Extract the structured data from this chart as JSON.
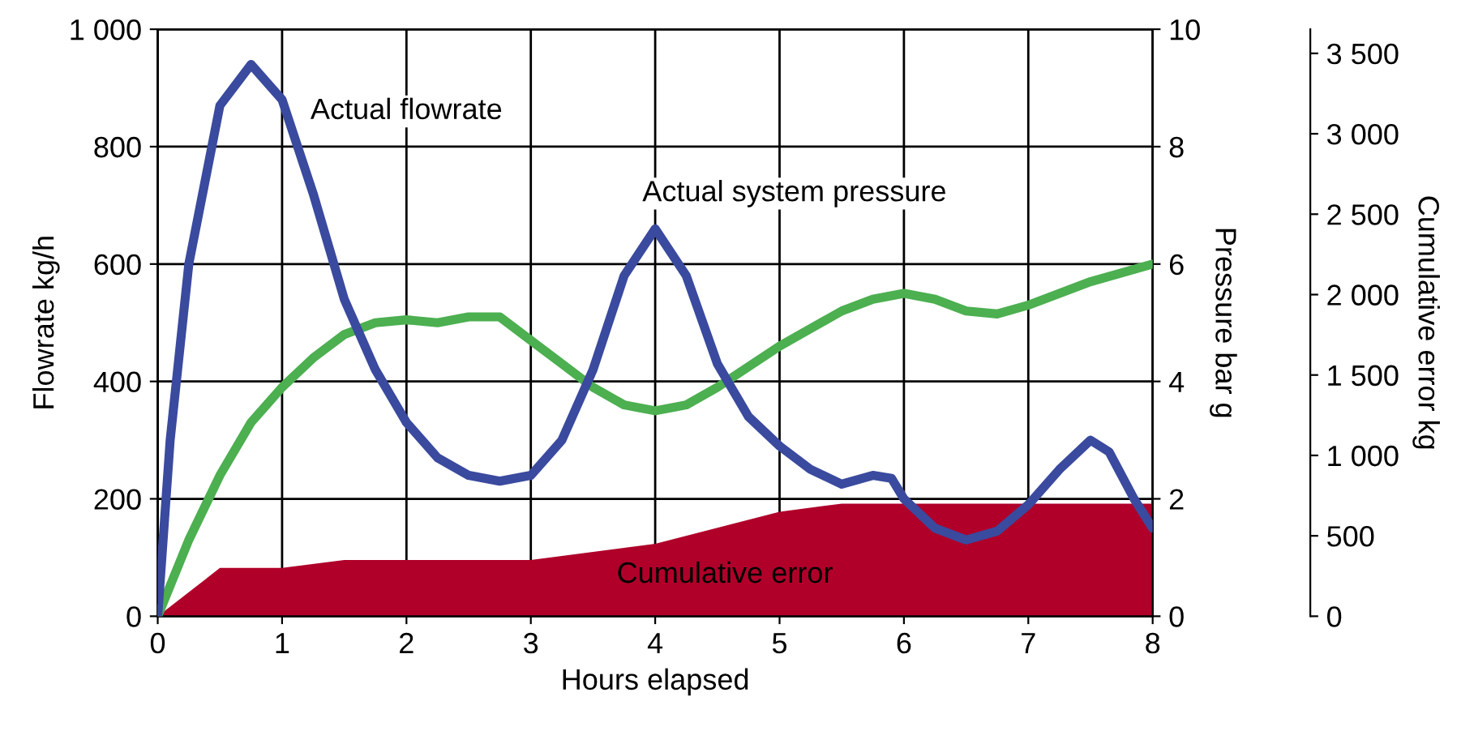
{
  "chart_data": {
    "type": "line",
    "xlabel": "Hours elapsed",
    "ylabel": "Flowrate kg/h",
    "y2label": "Pressure bar g",
    "y3label": "Cumulative error kg",
    "xlim": [
      0,
      8
    ],
    "xticks": [
      0,
      1,
      2,
      3,
      4,
      5,
      6,
      7,
      8
    ],
    "ylim": [
      0,
      1000
    ],
    "yticks": [
      0,
      200,
      400,
      600,
      800,
      {
        "value": 1000,
        "label": "1 000"
      }
    ],
    "y2lim": [
      0,
      10
    ],
    "y2ticks": [
      0,
      2,
      4,
      6,
      8,
      10
    ],
    "y3lim": [
      0,
      3650
    ],
    "y3ticks": [
      0,
      500,
      {
        "value": 1000,
        "label": "1 000"
      },
      {
        "value": 1500,
        "label": "1 500"
      },
      {
        "value": 2000,
        "label": "2 000"
      },
      {
        "value": 2500,
        "label": "2 500"
      },
      {
        "value": 3000,
        "label": "3 000"
      },
      {
        "value": 3500,
        "label": "3 500"
      }
    ],
    "grid": true,
    "legend": false,
    "line_style": "solid",
    "marker": "none",
    "series": [
      {
        "type": "area",
        "axis": "y3",
        "color": "#b0002a",
        "x": [
          0,
          0.5,
          1,
          1.5,
          2,
          2.5,
          3,
          3.5,
          4,
          4.5,
          5,
          5.5,
          6,
          6.5,
          7,
          7.5,
          8
        ],
        "values": [
          0,
          300,
          300,
          350,
          350,
          350,
          350,
          400,
          450,
          550,
          650,
          700,
          700,
          700,
          700,
          700,
          700
        ]
      },
      {
        "type": "line",
        "axis": "y2",
        "color": "#4caf50",
        "x": [
          0,
          0.25,
          0.5,
          0.75,
          1,
          1.25,
          1.5,
          1.75,
          2,
          2.25,
          2.5,
          2.75,
          3,
          3.25,
          3.5,
          3.75,
          4,
          4.25,
          4.5,
          5,
          5.5,
          5.75,
          6,
          6.25,
          6.5,
          6.75,
          7,
          7.5,
          8
        ],
        "values": [
          0,
          1.3,
          2.4,
          3.3,
          3.9,
          4.4,
          4.8,
          5.0,
          5.05,
          5.0,
          5.1,
          5.1,
          4.7,
          4.3,
          3.9,
          3.6,
          3.5,
          3.6,
          3.9,
          4.6,
          5.2,
          5.4,
          5.5,
          5.4,
          5.2,
          5.15,
          5.3,
          5.7,
          6.0
        ]
      },
      {
        "axis": "y",
        "color": "#3a4a9e",
        "x": [
          0,
          0.1,
          0.25,
          0.5,
          0.75,
          1,
          1.25,
          1.5,
          1.75,
          2,
          2.25,
          2.5,
          2.75,
          3,
          3.25,
          3.5,
          3.75,
          4,
          4.25,
          4.5,
          4.75,
          5,
          5.25,
          5.5,
          5.75,
          5.9,
          6,
          6.25,
          6.5,
          6.75,
          7,
          7.25,
          7.5,
          7.65,
          7.85,
          8
        ],
        "values": [
          0,
          300,
          600,
          870,
          940,
          880,
          720,
          540,
          420,
          330,
          270,
          240,
          230,
          240,
          300,
          420,
          580,
          660,
          580,
          430,
          340,
          290,
          250,
          225,
          240,
          235,
          200,
          150,
          130,
          145,
          190,
          250,
          300,
          280,
          200,
          150
        ]
      }
    ],
    "annotations": [
      "Actual flowrate",
      "Actual system pressure",
      "Cumulative error"
    ]
  }
}
